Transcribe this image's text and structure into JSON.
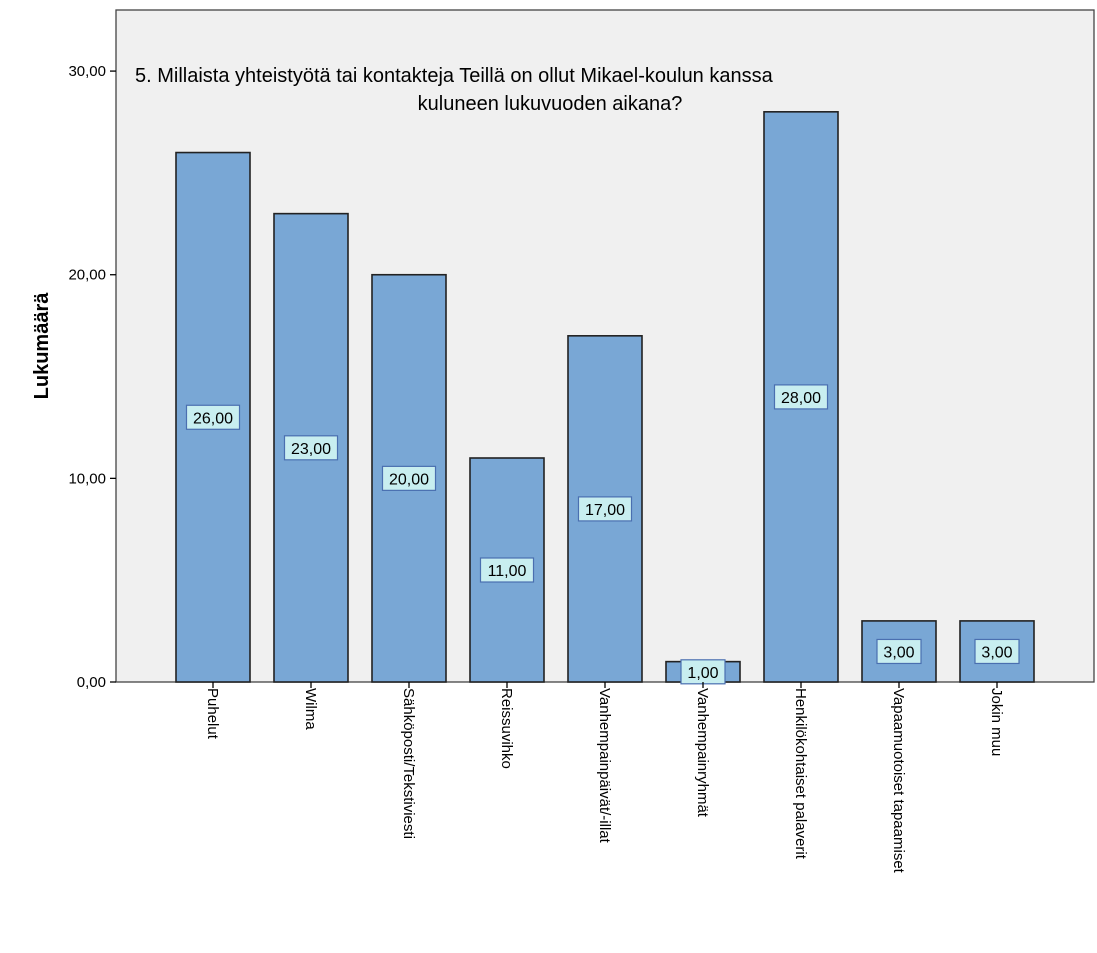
{
  "chart_data": {
    "type": "bar",
    "title_lines": [
      "5. Millaista yhteistyötä tai kontakteja Teillä on ollut Mikael-koulun kanssa",
      "kuluneen lukuvuoden aikana?"
    ],
    "ylabel": "Lukumäärä",
    "xlabel": "",
    "ylim": [
      0,
      33
    ],
    "yticks": [
      0,
      10,
      20,
      30
    ],
    "ytick_labels": [
      "0,00",
      "10,00",
      "20,00",
      "30,00"
    ],
    "categories": [
      "Puhelut",
      "Wilma",
      "Sähköposti/Tekstiviesti",
      "Reissuvihko",
      "Vanhempainpäivät/-illat",
      "Vanhempainryhmät",
      "Henkilökohtaiset palaverit",
      "Vapaamuotoiset tapaamiset",
      "Jokin muu"
    ],
    "values": [
      26,
      23,
      20,
      11,
      17,
      1,
      28,
      3,
      3
    ],
    "value_labels": [
      "26,00",
      "23,00",
      "20,00",
      "11,00",
      "17,00",
      "1,00",
      "28,00",
      "3,00",
      "3,00"
    ],
    "grid": false,
    "colors": {
      "plot_background": "#f0f0f0",
      "bar_fill": "#79a7d5",
      "bar_stroke": "#222222",
      "label_fill": "#c8eef0",
      "label_stroke": "#4a6fb0"
    }
  }
}
